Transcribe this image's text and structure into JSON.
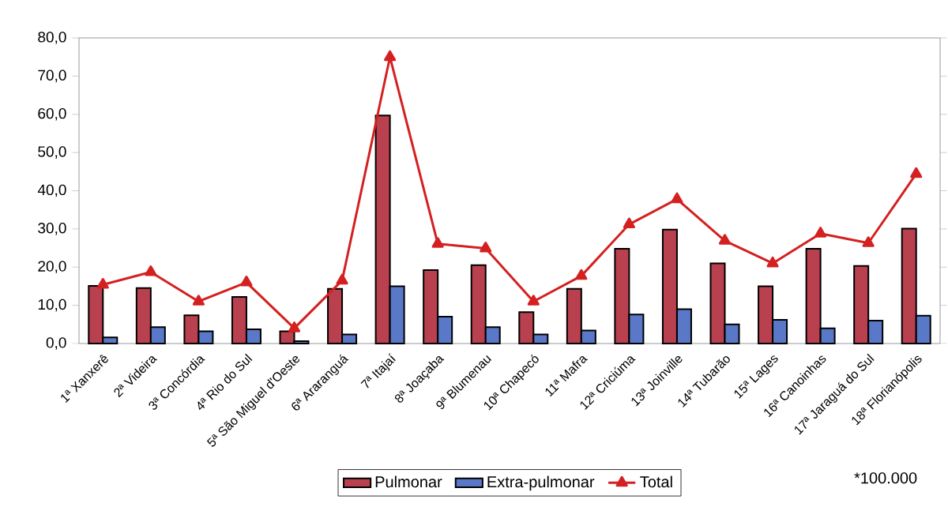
{
  "chart_data": {
    "type": "bar",
    "categories": [
      "1ª Xanxerê",
      "2ª Videira",
      "3ª Concórdia",
      "4ª Rio do Sul",
      "5ª São Miguel d'Oeste",
      "6ª Araranguá",
      "7ª Itajaí",
      "8ª Joaçaba",
      "9ª Blumenau",
      "10ª Chapecó",
      "11ª Mafra",
      "12ª Criciúma",
      "13ª Joinville",
      "14ª Tubarão",
      "15ª Lages",
      "16ª Canoinhas",
      "17ª Jaraguá do Sul",
      "18ª Florianópolis"
    ],
    "series": [
      {
        "name": "Pulmonar",
        "color": "#b8404f",
        "values": [
          15.1,
          14.5,
          7.4,
          12.2,
          3.2,
          14.3,
          59.7,
          19.2,
          20.5,
          8.2,
          14.3,
          24.8,
          29.8,
          21.0,
          15.0,
          24.8,
          20.3,
          30.1
        ]
      },
      {
        "name": "Extra-pulmonar",
        "color": "#5a78c8",
        "values": [
          1.6,
          4.3,
          3.2,
          3.7,
          0.6,
          2.4,
          15.0,
          7.0,
          4.3,
          2.4,
          3.4,
          7.6,
          9.0,
          5.0,
          6.2,
          4.0,
          6.0,
          7.3
        ]
      },
      {
        "name": "Total",
        "type": "line",
        "color": "#d42020",
        "marker": "triangle",
        "values": [
          15.4,
          18.7,
          11.0,
          16.0,
          4.0,
          16.5,
          75.0,
          26.1,
          24.9,
          11.0,
          17.7,
          31.2,
          37.8,
          26.9,
          21.0,
          28.8,
          26.3,
          44.4
        ]
      }
    ],
    "ylim": [
      0,
      80
    ],
    "yticks": [
      {
        "value": 0,
        "label": "0,0"
      },
      {
        "value": 10,
        "label": "10,0"
      },
      {
        "value": 20,
        "label": "20,0"
      },
      {
        "value": 30,
        "label": "30,0"
      },
      {
        "value": 40,
        "label": "40,0"
      },
      {
        "value": 50,
        "label": "50,0"
      },
      {
        "value": 60,
        "label": "60,0"
      },
      {
        "value": 70,
        "label": "70,0"
      },
      {
        "value": 80,
        "label": "80,0"
      }
    ],
    "legend": "bottom",
    "annotations": [
      "*100.000"
    ]
  }
}
